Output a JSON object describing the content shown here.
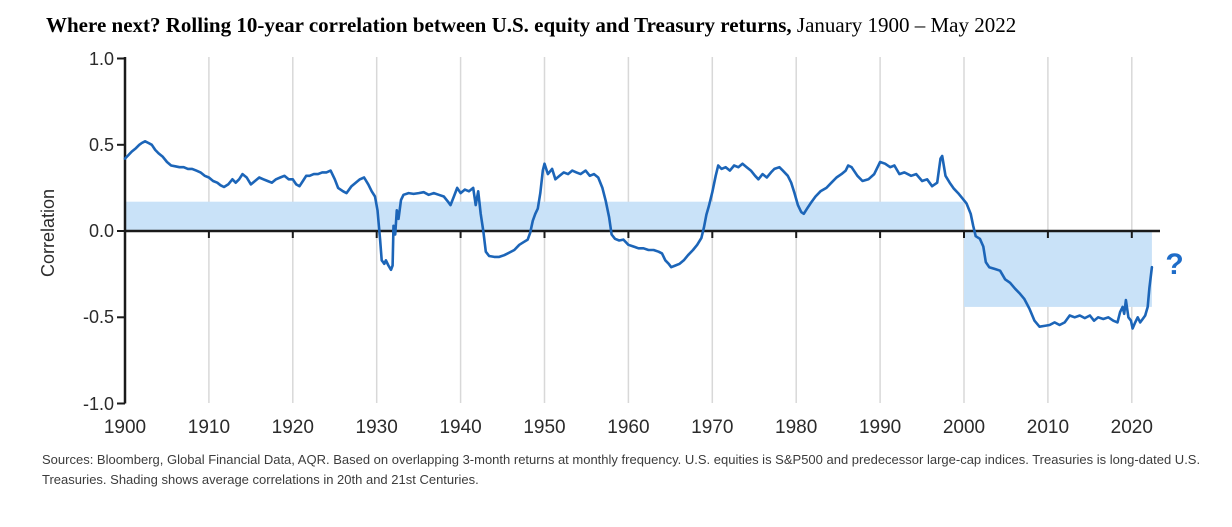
{
  "title": {
    "bold": "Where next? Rolling 10-year correlation between U.S. equity and Treasury returns,",
    "regular": " January 1900 – May 2022"
  },
  "source_note": "Sources: Bloomberg, Global Financial Data, AQR. Based on overlapping 3-month returns at monthly frequency. U.S. equities is S&P500 and predecessor large-cap indices. Treasuries is long-dated U.S. Treasuries. Shading shows average correlations in 20th and 21st Centuries.",
  "chart_data": {
    "type": "line",
    "title": "Where next? Rolling 10-year correlation between U.S. equity and Treasury returns, January 1900 – May 2022",
    "xlabel": "",
    "ylabel": "Correlation",
    "xlim": [
      1900,
      2023.5
    ],
    "ylim": [
      -1.0,
      1.0
    ],
    "grid": "vertical-decade-gridlines",
    "legend": "none",
    "x_ticks": [
      1900,
      1910,
      1920,
      1930,
      1940,
      1950,
      1960,
      1970,
      1980,
      1990,
      2000,
      2010,
      2020
    ],
    "y_ticks": [
      {
        "label": "1.0",
        "value": 1.0
      },
      {
        "label": "0.5",
        "value": 0.5
      },
      {
        "label": "0.0",
        "value": 0.0
      },
      {
        "label": "-0.5",
        "value": -0.5
      },
      {
        "label": "-1.0",
        "value": -1.0
      }
    ],
    "shading": [
      {
        "name": "20th-century-average-band",
        "x0": 1900,
        "x1": 2000,
        "c0": 0.0,
        "c1": 0.17
      },
      {
        "name": "21st-century-average-band",
        "x0": 2000,
        "x1": 2022.4,
        "c0": -0.44,
        "c1": 0.0
      }
    ],
    "annotation": {
      "text": "?",
      "x": 2024.0,
      "c": -0.22
    },
    "colors": {
      "line": "#1c65b8",
      "shading": "#c9e2f8",
      "grid": "#d8d8d8",
      "axis": "#1a1a1a",
      "annotation": "#1e6cc8",
      "tick_text": "#2b2b2b"
    },
    "series": [
      {
        "name": "Rolling 10-year correlation between U.S. equity and Treasury returns",
        "points": [
          [
            1900.0,
            0.42
          ],
          [
            1900.4,
            0.44
          ],
          [
            1900.8,
            0.46
          ],
          [
            1901.3,
            0.48
          ],
          [
            1901.7,
            0.5
          ],
          [
            1902.0,
            0.51
          ],
          [
            1902.4,
            0.52
          ],
          [
            1902.8,
            0.51
          ],
          [
            1903.2,
            0.5
          ],
          [
            1903.6,
            0.47
          ],
          [
            1904.0,
            0.45
          ],
          [
            1904.5,
            0.43
          ],
          [
            1905.0,
            0.4
          ],
          [
            1905.5,
            0.38
          ],
          [
            1906.0,
            0.375
          ],
          [
            1906.5,
            0.37
          ],
          [
            1907.0,
            0.37
          ],
          [
            1907.5,
            0.36
          ],
          [
            1908.0,
            0.36
          ],
          [
            1908.5,
            0.35
          ],
          [
            1909.0,
            0.34
          ],
          [
            1909.5,
            0.32
          ],
          [
            1910.0,
            0.31
          ],
          [
            1910.5,
            0.29
          ],
          [
            1911.0,
            0.28
          ],
          [
            1911.4,
            0.265
          ],
          [
            1911.8,
            0.255
          ],
          [
            1912.3,
            0.27
          ],
          [
            1912.8,
            0.3
          ],
          [
            1913.2,
            0.28
          ],
          [
            1913.6,
            0.3
          ],
          [
            1914.0,
            0.33
          ],
          [
            1914.5,
            0.31
          ],
          [
            1915.0,
            0.27
          ],
          [
            1915.5,
            0.29
          ],
          [
            1916.0,
            0.31
          ],
          [
            1916.5,
            0.3
          ],
          [
            1917.0,
            0.29
          ],
          [
            1917.5,
            0.28
          ],
          [
            1918.0,
            0.3
          ],
          [
            1918.5,
            0.31
          ],
          [
            1919.0,
            0.32
          ],
          [
            1919.5,
            0.3
          ],
          [
            1920.0,
            0.3
          ],
          [
            1920.4,
            0.27
          ],
          [
            1920.8,
            0.26
          ],
          [
            1921.2,
            0.29
          ],
          [
            1921.6,
            0.32
          ],
          [
            1922.0,
            0.32
          ],
          [
            1922.5,
            0.33
          ],
          [
            1923.0,
            0.33
          ],
          [
            1923.5,
            0.34
          ],
          [
            1924.0,
            0.34
          ],
          [
            1924.5,
            0.35
          ],
          [
            1925.0,
            0.3
          ],
          [
            1925.4,
            0.25
          ],
          [
            1926.0,
            0.23
          ],
          [
            1926.4,
            0.22
          ],
          [
            1927.0,
            0.26
          ],
          [
            1927.5,
            0.28
          ],
          [
            1928.0,
            0.3
          ],
          [
            1928.5,
            0.31
          ],
          [
            1929.0,
            0.27
          ],
          [
            1929.4,
            0.23
          ],
          [
            1929.8,
            0.2
          ],
          [
            1930.1,
            0.12
          ],
          [
            1930.4,
            -0.05
          ],
          [
            1930.6,
            -0.17
          ],
          [
            1930.9,
            -0.19
          ],
          [
            1931.1,
            -0.17
          ],
          [
            1931.4,
            -0.2
          ],
          [
            1931.7,
            -0.225
          ],
          [
            1931.9,
            -0.2
          ],
          [
            1932.0,
            0.03
          ],
          [
            1932.2,
            -0.02
          ],
          [
            1932.4,
            0.12
          ],
          [
            1932.6,
            0.07
          ],
          [
            1932.9,
            0.18
          ],
          [
            1933.2,
            0.21
          ],
          [
            1933.8,
            0.22
          ],
          [
            1934.4,
            0.215
          ],
          [
            1935.0,
            0.22
          ],
          [
            1935.6,
            0.225
          ],
          [
            1936.2,
            0.21
          ],
          [
            1936.8,
            0.22
          ],
          [
            1937.4,
            0.21
          ],
          [
            1938.0,
            0.2
          ],
          [
            1938.5,
            0.17
          ],
          [
            1938.8,
            0.15
          ],
          [
            1939.2,
            0.2
          ],
          [
            1939.6,
            0.25
          ],
          [
            1940.0,
            0.22
          ],
          [
            1940.5,
            0.24
          ],
          [
            1941.0,
            0.23
          ],
          [
            1941.5,
            0.25
          ],
          [
            1941.8,
            0.15
          ],
          [
            1942.1,
            0.23
          ],
          [
            1942.4,
            0.1
          ],
          [
            1942.7,
            0.0
          ],
          [
            1943.0,
            -0.12
          ],
          [
            1943.4,
            -0.145
          ],
          [
            1944.0,
            -0.15
          ],
          [
            1944.6,
            -0.15
          ],
          [
            1945.2,
            -0.14
          ],
          [
            1945.8,
            -0.125
          ],
          [
            1946.4,
            -0.11
          ],
          [
            1947.0,
            -0.08
          ],
          [
            1947.5,
            -0.065
          ],
          [
            1948.0,
            -0.05
          ],
          [
            1948.3,
            -0.01
          ],
          [
            1948.6,
            0.06
          ],
          [
            1948.9,
            0.1
          ],
          [
            1949.2,
            0.13
          ],
          [
            1949.5,
            0.22
          ],
          [
            1949.8,
            0.35
          ],
          [
            1950.0,
            0.39
          ],
          [
            1950.4,
            0.33
          ],
          [
            1950.9,
            0.36
          ],
          [
            1951.3,
            0.3
          ],
          [
            1951.8,
            0.32
          ],
          [
            1952.3,
            0.34
          ],
          [
            1952.8,
            0.33
          ],
          [
            1953.3,
            0.35
          ],
          [
            1953.8,
            0.34
          ],
          [
            1954.3,
            0.33
          ],
          [
            1954.9,
            0.35
          ],
          [
            1955.4,
            0.32
          ],
          [
            1955.9,
            0.33
          ],
          [
            1956.4,
            0.31
          ],
          [
            1956.9,
            0.25
          ],
          [
            1957.3,
            0.175
          ],
          [
            1957.7,
            0.08
          ],
          [
            1958.0,
            -0.02
          ],
          [
            1958.4,
            -0.045
          ],
          [
            1958.9,
            -0.055
          ],
          [
            1959.4,
            -0.05
          ],
          [
            1960.0,
            -0.08
          ],
          [
            1960.6,
            -0.09
          ],
          [
            1961.2,
            -0.1
          ],
          [
            1961.8,
            -0.1
          ],
          [
            1962.4,
            -0.11
          ],
          [
            1963.0,
            -0.11
          ],
          [
            1963.6,
            -0.12
          ],
          [
            1964.0,
            -0.13
          ],
          [
            1964.4,
            -0.17
          ],
          [
            1964.8,
            -0.19
          ],
          [
            1965.1,
            -0.21
          ],
          [
            1965.6,
            -0.2
          ],
          [
            1966.1,
            -0.19
          ],
          [
            1966.6,
            -0.17
          ],
          [
            1967.1,
            -0.14
          ],
          [
            1967.7,
            -0.11
          ],
          [
            1968.2,
            -0.08
          ],
          [
            1968.7,
            -0.04
          ],
          [
            1969.0,
            0.02
          ],
          [
            1969.3,
            0.095
          ],
          [
            1969.6,
            0.145
          ],
          [
            1970.0,
            0.225
          ],
          [
            1970.4,
            0.32
          ],
          [
            1970.7,
            0.38
          ],
          [
            1971.1,
            0.36
          ],
          [
            1971.6,
            0.37
          ],
          [
            1972.1,
            0.35
          ],
          [
            1972.6,
            0.38
          ],
          [
            1973.1,
            0.37
          ],
          [
            1973.6,
            0.39
          ],
          [
            1974.1,
            0.37
          ],
          [
            1974.6,
            0.35
          ],
          [
            1975.1,
            0.32
          ],
          [
            1975.5,
            0.3
          ],
          [
            1976.0,
            0.33
          ],
          [
            1976.5,
            0.31
          ],
          [
            1977.0,
            0.34
          ],
          [
            1977.4,
            0.36
          ],
          [
            1978.0,
            0.37
          ],
          [
            1978.4,
            0.35
          ],
          [
            1979.0,
            0.32
          ],
          [
            1979.4,
            0.28
          ],
          [
            1979.8,
            0.22
          ],
          [
            1980.2,
            0.15
          ],
          [
            1980.6,
            0.11
          ],
          [
            1980.9,
            0.1
          ],
          [
            1981.3,
            0.13
          ],
          [
            1981.7,
            0.16
          ],
          [
            1982.3,
            0.2
          ],
          [
            1982.9,
            0.23
          ],
          [
            1983.6,
            0.25
          ],
          [
            1984.2,
            0.28
          ],
          [
            1984.8,
            0.31
          ],
          [
            1985.4,
            0.33
          ],
          [
            1985.9,
            0.35
          ],
          [
            1986.2,
            0.38
          ],
          [
            1986.6,
            0.37
          ],
          [
            1987.3,
            0.32
          ],
          [
            1987.9,
            0.29
          ],
          [
            1988.6,
            0.3
          ],
          [
            1989.3,
            0.33
          ],
          [
            1990.0,
            0.4
          ],
          [
            1990.6,
            0.39
          ],
          [
            1991.2,
            0.37
          ],
          [
            1991.7,
            0.38
          ],
          [
            1992.3,
            0.33
          ],
          [
            1992.9,
            0.34
          ],
          [
            1993.7,
            0.32
          ],
          [
            1994.3,
            0.33
          ],
          [
            1995.0,
            0.29
          ],
          [
            1995.6,
            0.3
          ],
          [
            1996.2,
            0.26
          ],
          [
            1996.8,
            0.28
          ],
          [
            1997.2,
            0.42
          ],
          [
            1997.4,
            0.435
          ],
          [
            1997.8,
            0.32
          ],
          [
            1998.3,
            0.28
          ],
          [
            1998.8,
            0.245
          ],
          [
            1999.3,
            0.22
          ],
          [
            1999.8,
            0.19
          ],
          [
            2000.3,
            0.16
          ],
          [
            2000.8,
            0.1
          ],
          [
            2001.1,
            0.03
          ],
          [
            2001.4,
            -0.03
          ],
          [
            2001.9,
            -0.045
          ],
          [
            2002.3,
            -0.09
          ],
          [
            2002.6,
            -0.18
          ],
          [
            2003.0,
            -0.21
          ],
          [
            2003.7,
            -0.22
          ],
          [
            2004.3,
            -0.23
          ],
          [
            2004.9,
            -0.28
          ],
          [
            2005.5,
            -0.3
          ],
          [
            2006.1,
            -0.335
          ],
          [
            2006.6,
            -0.36
          ],
          [
            2007.2,
            -0.395
          ],
          [
            2007.8,
            -0.45
          ],
          [
            2008.4,
            -0.52
          ],
          [
            2009.0,
            -0.555
          ],
          [
            2009.6,
            -0.55
          ],
          [
            2010.2,
            -0.545
          ],
          [
            2010.8,
            -0.53
          ],
          [
            2011.4,
            -0.545
          ],
          [
            2012.0,
            -0.53
          ],
          [
            2012.6,
            -0.49
          ],
          [
            2013.2,
            -0.5
          ],
          [
            2013.8,
            -0.49
          ],
          [
            2014.4,
            -0.505
          ],
          [
            2015.0,
            -0.49
          ],
          [
            2015.5,
            -0.52
          ],
          [
            2016.0,
            -0.5
          ],
          [
            2016.6,
            -0.51
          ],
          [
            2017.2,
            -0.5
          ],
          [
            2017.8,
            -0.52
          ],
          [
            2018.3,
            -0.53
          ],
          [
            2018.6,
            -0.47
          ],
          [
            2018.9,
            -0.44
          ],
          [
            2019.1,
            -0.48
          ],
          [
            2019.3,
            -0.4
          ],
          [
            2019.6,
            -0.5
          ],
          [
            2019.9,
            -0.52
          ],
          [
            2020.1,
            -0.565
          ],
          [
            2020.4,
            -0.53
          ],
          [
            2020.7,
            -0.5
          ],
          [
            2021.0,
            -0.53
          ],
          [
            2021.3,
            -0.51
          ],
          [
            2021.6,
            -0.49
          ],
          [
            2021.9,
            -0.44
          ],
          [
            2022.1,
            -0.33
          ],
          [
            2022.4,
            -0.21
          ]
        ]
      }
    ]
  }
}
